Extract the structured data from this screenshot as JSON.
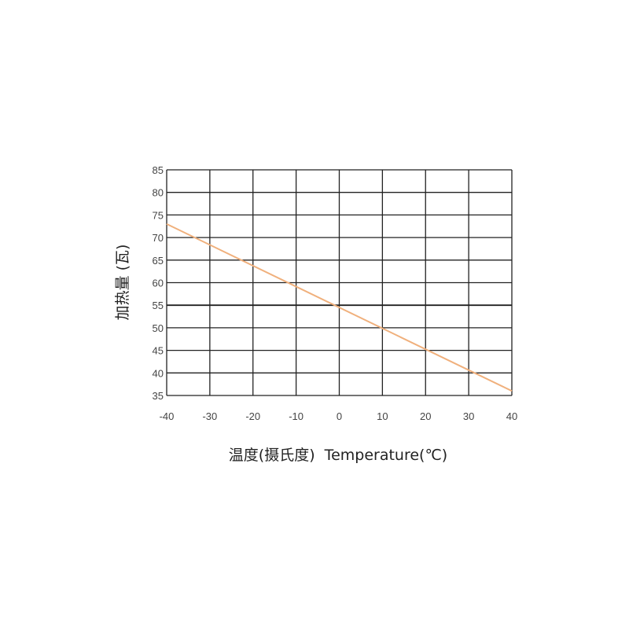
{
  "chart_data": {
    "type": "line",
    "title": "",
    "xlabel": "温度(摄氏度)  Temperature(℃)",
    "ylabel": "加热量 (瓦)",
    "xlim": [
      -40,
      40
    ],
    "ylim": [
      35,
      85
    ],
    "x_ticks": [
      "-40",
      "-30",
      "-20",
      "-10",
      "0",
      "10",
      "20",
      "30",
      "40"
    ],
    "y_ticks": [
      "85",
      "80",
      "75",
      "70",
      "65",
      "60",
      "55",
      "50",
      "45",
      "40",
      "35"
    ],
    "grid": true,
    "legend": "none",
    "series": [
      {
        "x": [
          -40,
          40
        ],
        "y": [
          73,
          36
        ],
        "color": "#f0b07c"
      }
    ]
  }
}
